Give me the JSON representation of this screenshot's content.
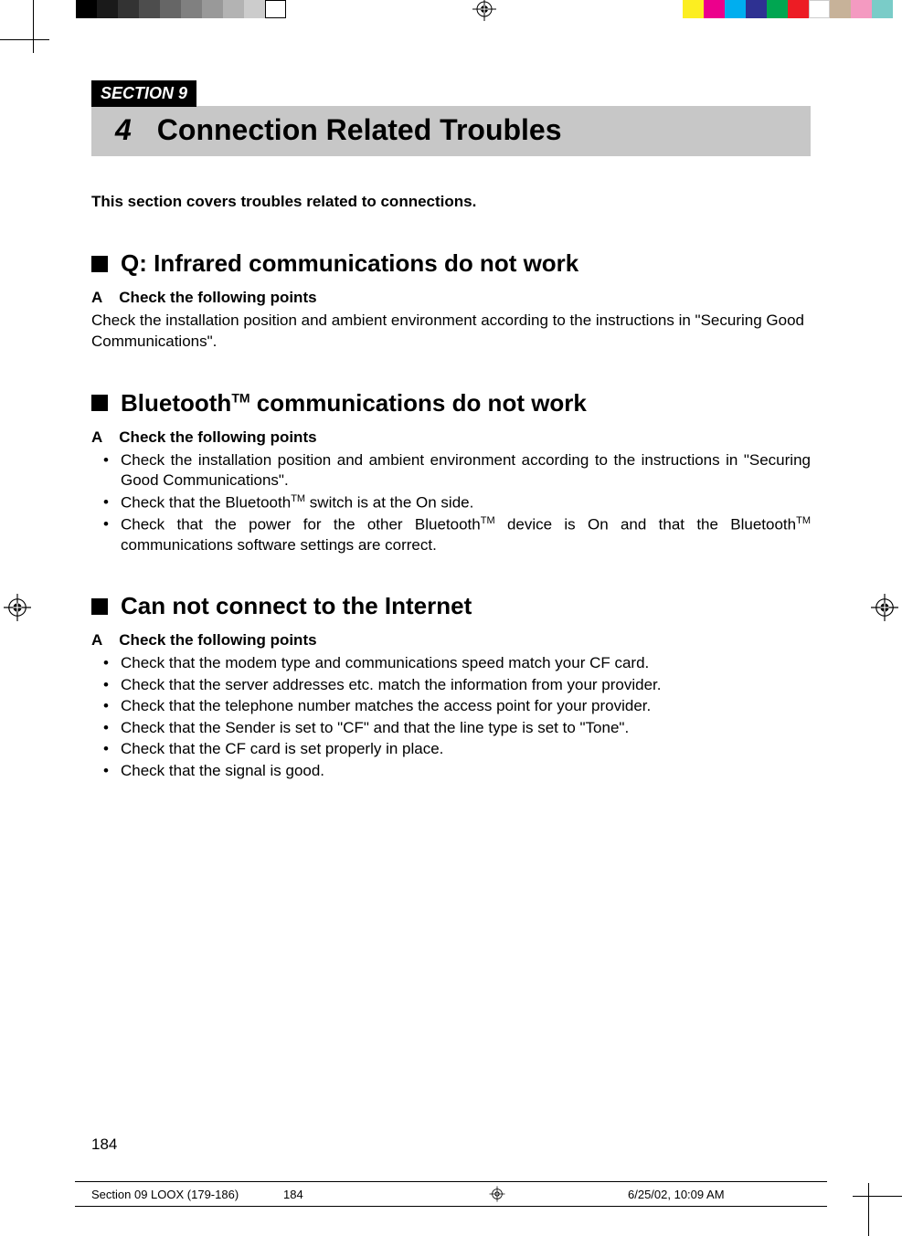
{
  "colorbar": {
    "left_group": [
      "#000000",
      "#1a1a1a",
      "#333333",
      "#4d4d4d",
      "#666666",
      "#808080",
      "#999999",
      "#b3b3b3",
      "#cccccc",
      "#ffffff"
    ],
    "right_group": [
      "#fcee21",
      "#ec008c",
      "#00aeef",
      "#2e3192",
      "#00a651",
      "#ed1c24",
      "#ffffff",
      "#c7b299",
      "#f49ac1",
      "#7accc8"
    ]
  },
  "section_label": "SECTION 9",
  "title_number": "4",
  "title_text": "Connection Related Troubles",
  "intro": "This section covers troubles related to connections.",
  "blocks": [
    {
      "heading_prefix": "Q: ",
      "heading": "Infrared communications do not work",
      "heading_tm": false,
      "a_label": "A",
      "a_heading": "Check the following points",
      "body": "Check the installation position and ambient environment according to the instructions in \"Securing Good Communications\".",
      "bullets": []
    },
    {
      "heading_prefix": "",
      "heading": "Bluetooth",
      "heading_tm": true,
      "heading_suffix": " communications do not work",
      "a_label": "A",
      "a_heading": "Check the following points",
      "body": "",
      "bullets": [
        "Check the installation position and ambient environment according to the instructions in \"Securing Good Communications\".",
        "Check that the Bluetooth™ switch is at the On side.",
        "Check that the power for the other Bluetooth™ device is On and that the Bluetooth™ communications software settings are correct."
      ],
      "bullets_justify": [
        true,
        false,
        true
      ]
    },
    {
      "heading_prefix": "",
      "heading": "Can not connect to the Internet",
      "heading_tm": false,
      "a_label": "A",
      "a_heading": "Check the following points",
      "body": "",
      "bullets": [
        "Check that the modem type and communications speed match your CF card.",
        "Check that the server addresses etc. match the information from your provider.",
        "Check that the telephone number matches the access point for your provider.",
        "Check that the Sender is set to \"CF\" and that the line type is set to \"Tone\".",
        "Check that the CF card is set properly in place.",
        "Check that the signal is good."
      ]
    }
  ],
  "page_number": "184",
  "slug": {
    "left": "Section 09 LOOX (179-186)",
    "mid": "184",
    "right": "6/25/02, 10:09 AM"
  }
}
